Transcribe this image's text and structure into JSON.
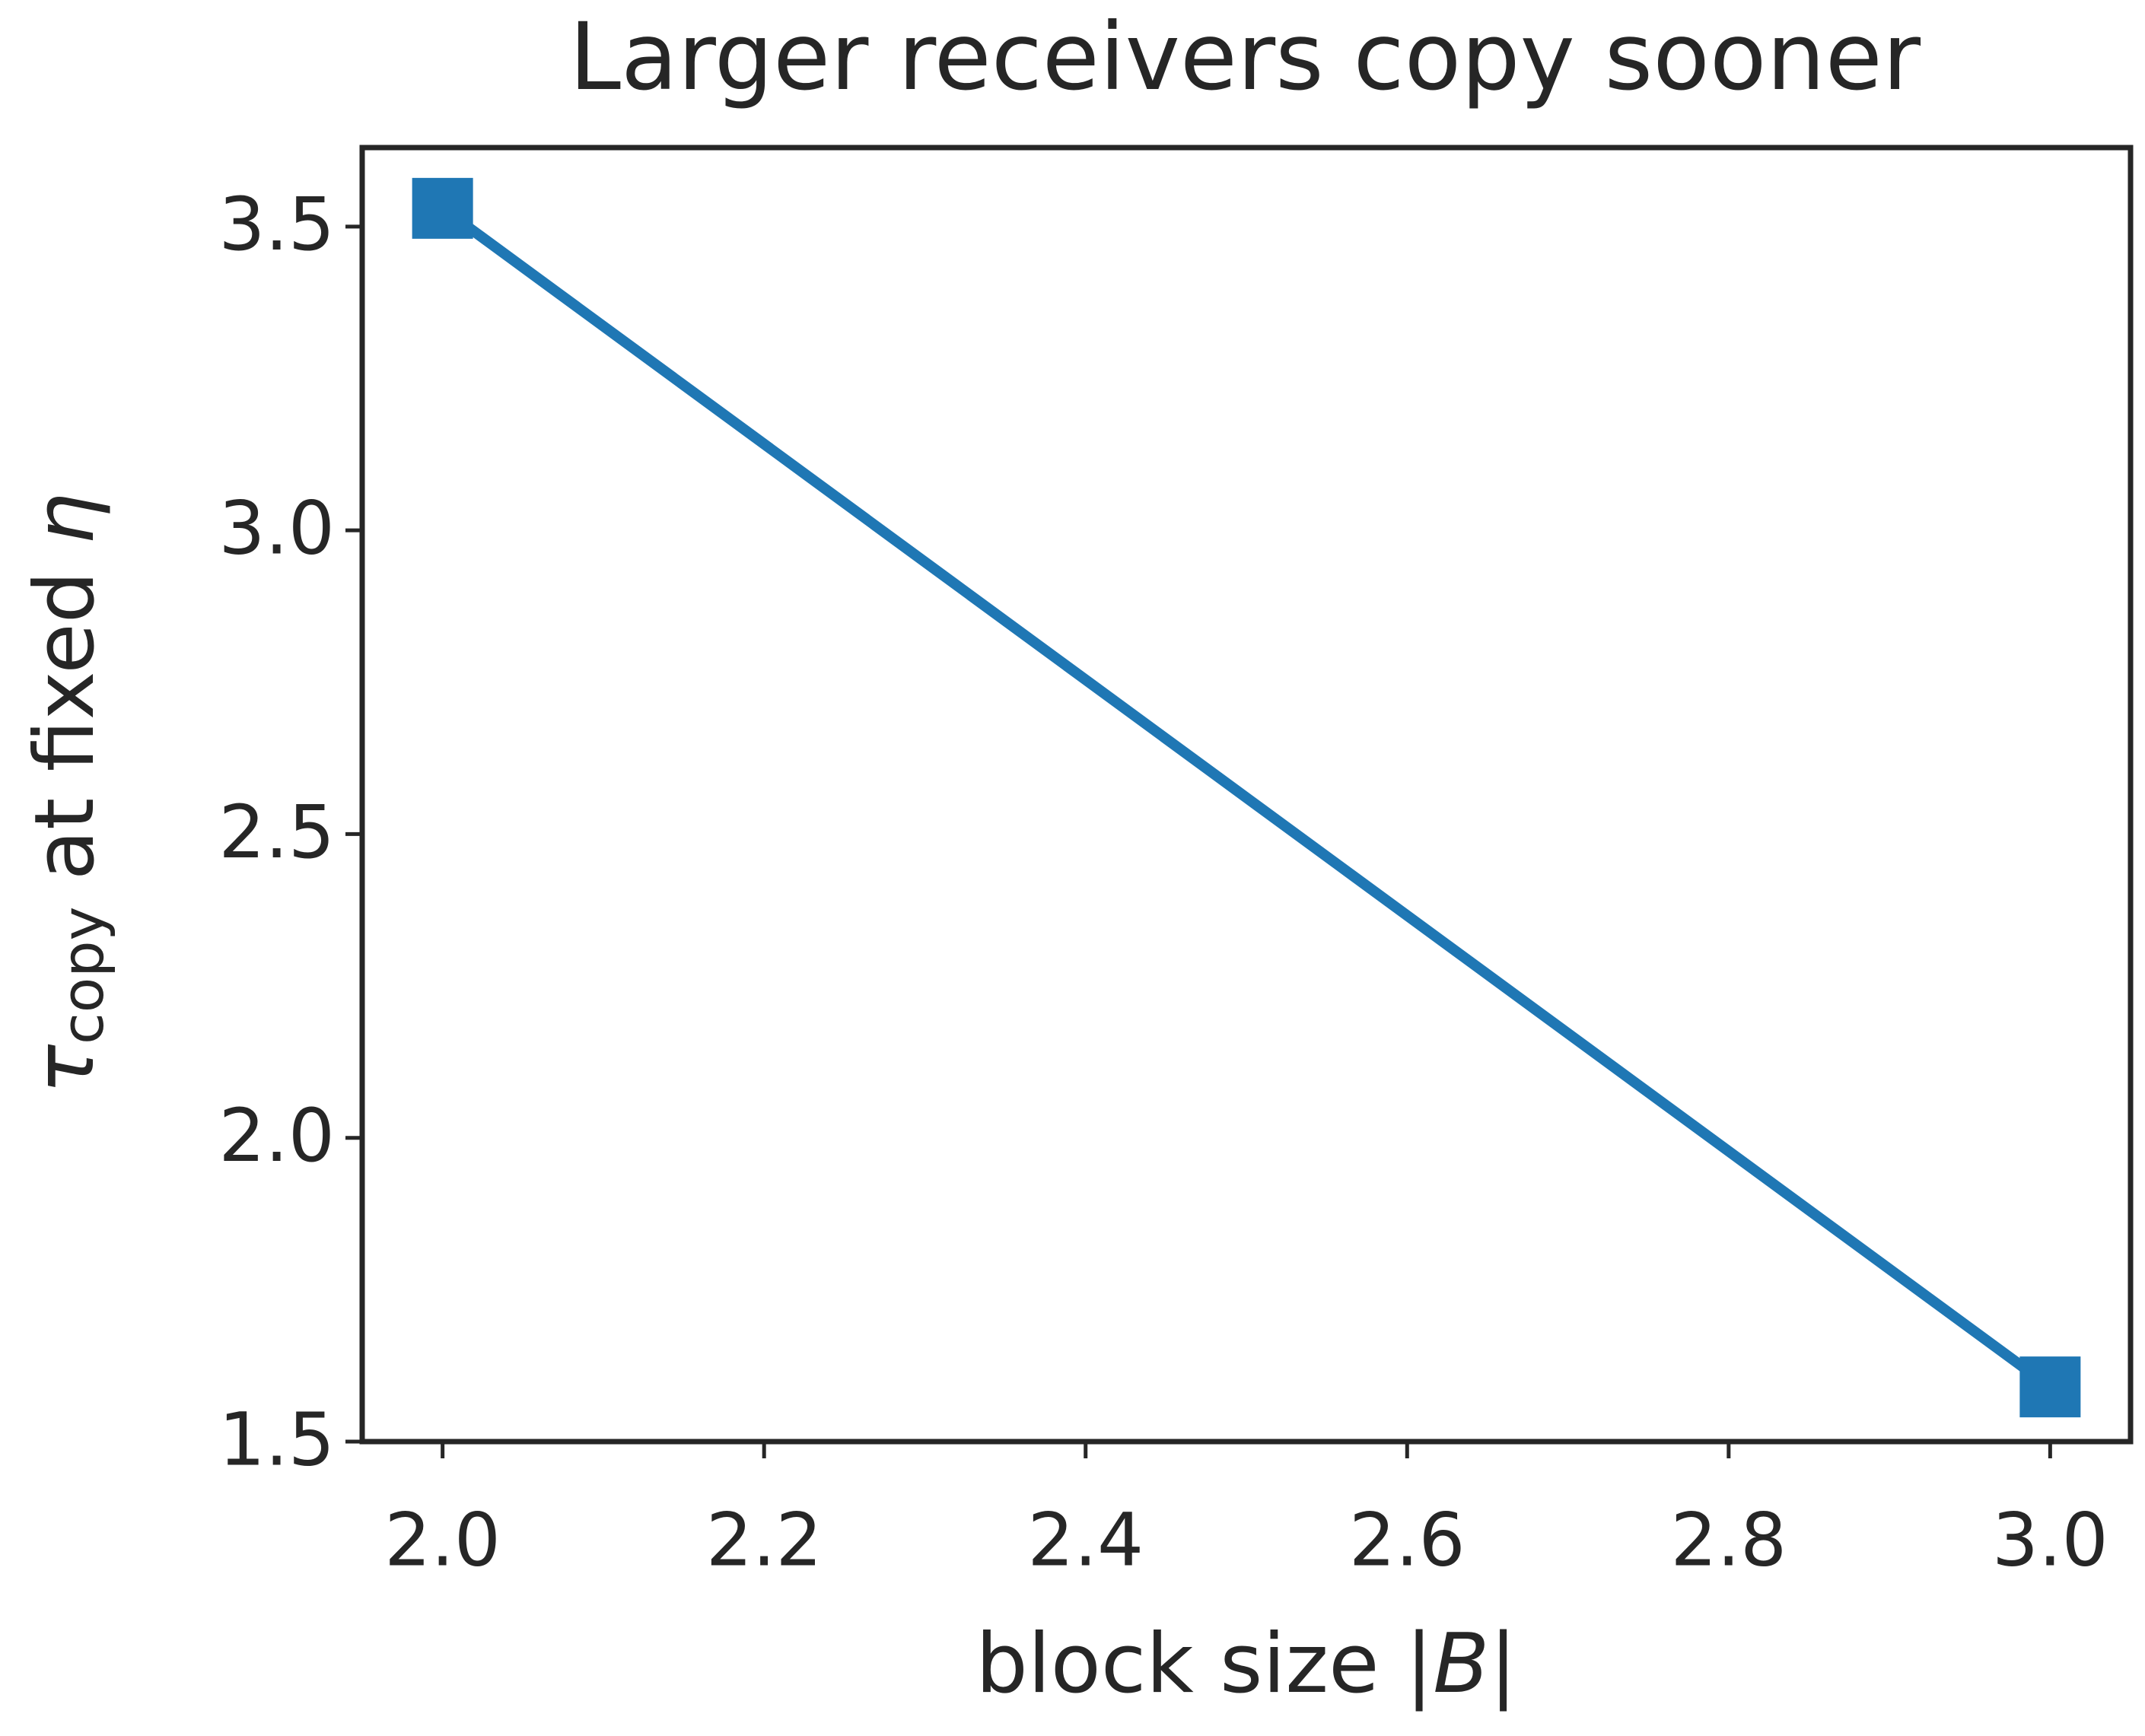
{
  "chart_data": {
    "type": "line",
    "title": "Larger receivers copy sooner",
    "xlabel": [
      "block size |",
      "B",
      "|"
    ],
    "ylabel": [
      "τ",
      "copy",
      " at fixed ",
      "η"
    ],
    "x": [
      2,
      3
    ],
    "series": [
      {
        "color": "#1f77b4",
        "values": [
          3.53,
          1.59
        ]
      }
    ],
    "marker": "square",
    "xlim": [
      1.95,
      3.05
    ],
    "xticks": [
      {
        "value": 2,
        "label": "2.0"
      },
      2.2,
      2.4,
      2.6,
      2.8,
      {
        "value": 3,
        "label": "3.0"
      }
    ],
    "ylim": [
      1.5,
      3.63
    ],
    "yticks": [
      1.5,
      {
        "value": 2,
        "label": "2.0"
      },
      2.5,
      {
        "value": 3,
        "label": "3.0"
      },
      3.5
    ],
    "grid": false
  }
}
